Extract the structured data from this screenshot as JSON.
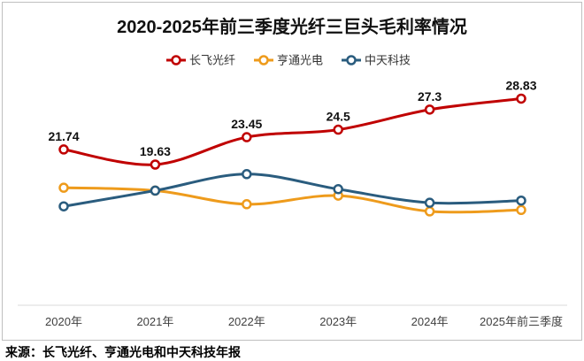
{
  "chart_data": {
    "type": "line",
    "title": "2020-2025年前三季度光纤三巨头毛利率情况",
    "categories": [
      "2020年",
      "2021年",
      "2022年",
      "2023年",
      "2024年",
      "2025年前三季度"
    ],
    "series": [
      {
        "name": "长飞光纤",
        "color": "#C00000",
        "values": [
          21.74,
          19.63,
          23.45,
          24.5,
          27.3,
          28.83
        ],
        "show_data_labels": true
      },
      {
        "name": "亨通光电",
        "color": "#EE9B1C",
        "values": [
          16.4,
          16.0,
          14.1,
          15.3,
          13.1,
          13.3
        ],
        "show_data_labels": false
      },
      {
        "name": "中天科技",
        "color": "#2A5C7E",
        "values": [
          13.8,
          16.0,
          18.3,
          16.2,
          14.3,
          14.6
        ],
        "show_data_labels": false
      }
    ],
    "ylim": [
      0,
      35
    ],
    "y_axis_visible": false,
    "smooth": true,
    "markers": "circle",
    "grid": false,
    "legend": "top"
  },
  "source": "来源：长飞光纤、亨通光电和中天科技年报"
}
